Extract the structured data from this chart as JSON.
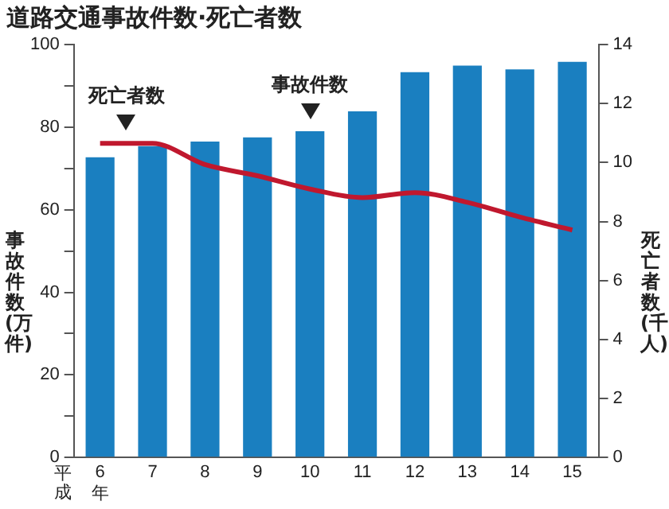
{
  "chart_data": {
    "type": "bar",
    "title": "道路交通事故件数·死亡者数",
    "xlabel": "平成",
    "ylabel": "事故件数(万件)",
    "y2label": "死亡者数(千人)",
    "categories": [
      "6年",
      "7",
      "8",
      "9",
      "10",
      "11",
      "12",
      "13",
      "14",
      "15"
    ],
    "series": [
      {
        "color": "#1a7fc0",
        "values": [
          72.7,
          75.4,
          76.5,
          77.5,
          79.0,
          83.8,
          93.3,
          94.9,
          94.0,
          95.8
        ]
      },
      {
        "type": "line",
        "axis": "y2",
        "color": "#c0182e",
        "values": [
          10.65,
          10.65,
          9.93,
          9.55,
          9.1,
          8.81,
          8.98,
          8.65,
          8.15,
          7.71
        ]
      }
    ],
    "ylim": [
      0,
      100
    ],
    "yticks": [
      0,
      {
        "value": 10,
        "label": null
      },
      20,
      {
        "value": 30,
        "label": null
      },
      40,
      {
        "value": 50,
        "label": null
      },
      60,
      {
        "value": 70,
        "label": null
      },
      80,
      {
        "value": 90,
        "label": null
      },
      100
    ],
    "y2lim": [
      0,
      14
    ],
    "y2ticks": [
      0,
      2,
      4,
      6,
      8,
      10,
      12,
      14
    ],
    "annotations": [
      {
        "text": "死亡者数",
        "x": "6年",
        "y": 76
      },
      {
        "text": "事故件数",
        "x": "10",
        "y": 79
      }
    ],
    "grid": false,
    "legend": false,
    "marker": "none"
  }
}
